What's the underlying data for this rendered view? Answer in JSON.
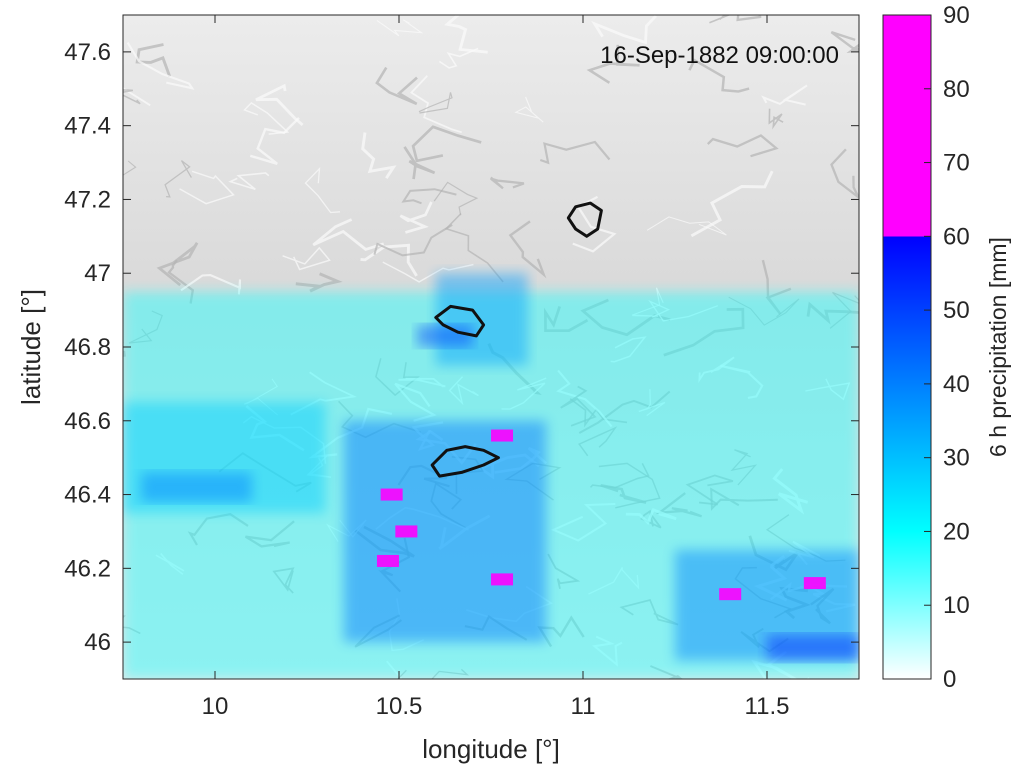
{
  "chart_data": {
    "type": "heatmap",
    "title": "",
    "timestamp": "16-Sep-1882 09:00:00",
    "xlabel": "longitude [°]",
    "ylabel": "latitude [°]",
    "xlim": [
      9.75,
      11.75
    ],
    "ylim": [
      45.9,
      47.7
    ],
    "x_ticks": [
      10,
      10.5,
      11,
      11.5
    ],
    "x_tick_labels": [
      "10",
      "10.5",
      "11",
      "11.5"
    ],
    "y_ticks": [
      46,
      46.2,
      46.4,
      46.6,
      46.8,
      47,
      47.2,
      47.4,
      47.6
    ],
    "y_tick_labels": [
      "46",
      "46.2",
      "46.4",
      "46.6",
      "46.8",
      "47",
      "47.2",
      "47.4",
      "47.6"
    ],
    "colorbar": {
      "label": "6 h precipitation [mm]",
      "range": [
        0,
        90
      ],
      "ticks": [
        0,
        10,
        20,
        30,
        40,
        50,
        60,
        70,
        80,
        90
      ],
      "tick_labels": [
        "0",
        "10",
        "20",
        "30",
        "40",
        "50",
        "60",
        "70",
        "80",
        "90"
      ],
      "stops": [
        {
          "value": 0,
          "color": "#ffffff"
        },
        {
          "value": 20,
          "color": "#00ffff"
        },
        {
          "value": 60,
          "color": "#0000ff"
        },
        {
          "value": 60,
          "color": "#ff00ff"
        },
        {
          "value": 90,
          "color": "#ff00ff"
        }
      ]
    },
    "precip_regions": [
      {
        "lon": [
          9.75,
          11.75
        ],
        "lat": [
          45.9,
          46.95
        ],
        "mm": 18
      },
      {
        "lon": [
          9.75,
          10.3
        ],
        "lat": [
          46.35,
          46.65
        ],
        "mm": 28
      },
      {
        "lon": [
          9.8,
          10.1
        ],
        "lat": [
          46.38,
          46.46
        ],
        "mm": 40
      },
      {
        "lon": [
          10.35,
          10.9
        ],
        "lat": [
          46.0,
          46.6
        ],
        "mm": 42
      },
      {
        "lon": [
          10.6,
          10.85
        ],
        "lat": [
          46.75,
          47.0
        ],
        "mm": 35
      },
      {
        "lon": [
          10.55,
          10.7
        ],
        "lat": [
          46.8,
          46.86
        ],
        "mm": 50
      },
      {
        "lon": [
          11.25,
          11.75
        ],
        "lat": [
          45.95,
          46.25
        ],
        "mm": 40
      },
      {
        "lon": [
          11.5,
          11.75
        ],
        "lat": [
          45.95,
          46.02
        ],
        "mm": 55
      }
    ],
    "precip_peaks": [
      {
        "lon": 10.48,
        "lat": 46.4,
        "mm": 75
      },
      {
        "lon": 10.52,
        "lat": 46.3,
        "mm": 72
      },
      {
        "lon": 10.47,
        "lat": 46.22,
        "mm": 78
      },
      {
        "lon": 10.78,
        "lat": 46.56,
        "mm": 70
      },
      {
        "lon": 10.78,
        "lat": 46.17,
        "mm": 68
      },
      {
        "lon": 11.4,
        "lat": 46.13,
        "mm": 66
      },
      {
        "lon": 11.63,
        "lat": 46.16,
        "mm": 65
      }
    ],
    "catchments": [
      [
        [
          10.96,
          47.15
        ],
        [
          10.98,
          47.18
        ],
        [
          11.02,
          47.19
        ],
        [
          11.05,
          47.17
        ],
        [
          11.04,
          47.12
        ],
        [
          11.01,
          47.1
        ],
        [
          10.98,
          47.12
        ]
      ],
      [
        [
          10.6,
          46.88
        ],
        [
          10.64,
          46.91
        ],
        [
          10.7,
          46.9
        ],
        [
          10.73,
          46.86
        ],
        [
          10.71,
          46.83
        ],
        [
          10.66,
          46.84
        ],
        [
          10.62,
          46.86
        ]
      ],
      [
        [
          10.59,
          46.48
        ],
        [
          10.63,
          46.52
        ],
        [
          10.68,
          46.53
        ],
        [
          10.73,
          46.52
        ],
        [
          10.77,
          46.5
        ],
        [
          10.73,
          46.48
        ],
        [
          10.67,
          46.46
        ],
        [
          10.61,
          46.45
        ]
      ]
    ]
  }
}
